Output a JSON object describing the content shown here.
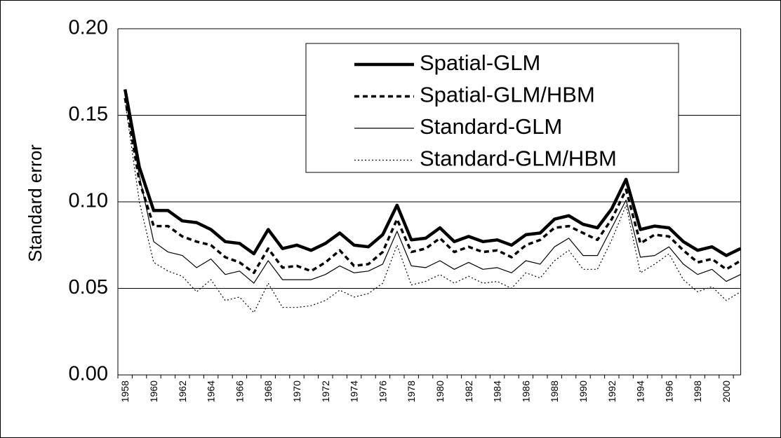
{
  "chart_data": {
    "type": "line",
    "y_label": "Standard error",
    "categories": [
      "1958",
      null,
      "1960",
      null,
      "1962",
      null,
      "1964",
      null,
      "1966",
      null,
      "1968",
      null,
      "1970",
      null,
      "1972",
      null,
      "1974",
      null,
      "1976",
      null,
      "1978",
      null,
      "1980",
      null,
      "1982",
      null,
      "1984",
      null,
      "1986",
      null,
      "1988",
      null,
      "1990",
      null,
      "1992",
      null,
      "1994",
      null,
      "1996",
      null,
      "1998",
      null,
      "2000",
      null
    ],
    "ylim": [
      0,
      0.2
    ],
    "yticks": [
      {
        "value": 0,
        "label": "0.00"
      },
      0.05,
      {
        "value": 0.1,
        "label": "0.10"
      },
      0.15,
      {
        "value": 0.2,
        "label": "0.20"
      }
    ],
    "grid": true,
    "legend": "top-right",
    "series": [
      {
        "name": "Spatial-GLM",
        "color": "#000000",
        "line_width": 4.5,
        "dash": "none",
        "values": [
          0.165,
          0.12,
          0.095,
          0.095,
          0.089,
          0.088,
          0.084,
          0.077,
          0.076,
          0.07,
          0.084,
          0.073,
          0.075,
          0.072,
          0.076,
          0.082,
          0.075,
          0.074,
          0.081,
          0.098,
          0.078,
          0.079,
          0.085,
          0.077,
          0.08,
          0.077,
          0.078,
          0.075,
          0.081,
          0.082,
          0.09,
          0.092,
          0.087,
          0.085,
          0.096,
          0.113,
          0.084,
          0.086,
          0.085,
          0.077,
          0.072,
          0.074,
          0.069,
          0.073
        ]
      },
      {
        "name": "Spatial-GLM/HBM",
        "color": "#000000",
        "line_width": 3.5,
        "dash": "7 5",
        "values": [
          0.16,
          0.112,
          0.086,
          0.086,
          0.08,
          0.077,
          0.075,
          0.068,
          0.065,
          0.059,
          0.073,
          0.062,
          0.063,
          0.06,
          0.065,
          0.072,
          0.063,
          0.064,
          0.071,
          0.09,
          0.071,
          0.073,
          0.079,
          0.071,
          0.074,
          0.071,
          0.072,
          0.068,
          0.075,
          0.078,
          0.085,
          0.086,
          0.082,
          0.078,
          0.09,
          0.107,
          0.076,
          0.081,
          0.08,
          0.072,
          0.065,
          0.067,
          0.061,
          0.066
        ]
      },
      {
        "name": "Standard-GLM",
        "color": "#000000",
        "line_width": 1.2,
        "dash": "none",
        "values": [
          0.162,
          0.115,
          0.077,
          0.071,
          0.069,
          0.062,
          0.067,
          0.058,
          0.06,
          0.053,
          0.066,
          0.055,
          0.055,
          0.055,
          0.058,
          0.063,
          0.059,
          0.06,
          0.064,
          0.083,
          0.063,
          0.062,
          0.066,
          0.061,
          0.065,
          0.061,
          0.062,
          0.059,
          0.066,
          0.064,
          0.074,
          0.079,
          0.069,
          0.069,
          0.085,
          0.101,
          0.068,
          0.069,
          0.074,
          0.064,
          0.058,
          0.061,
          0.054,
          0.058
        ]
      },
      {
        "name": "Standard-GLM/HBM",
        "color": "#000000",
        "line_width": 1.2,
        "dash": "2 3",
        "values": [
          0.158,
          0.1,
          0.065,
          0.06,
          0.057,
          0.048,
          0.055,
          0.043,
          0.045,
          0.036,
          0.053,
          0.039,
          0.039,
          0.04,
          0.043,
          0.049,
          0.045,
          0.047,
          0.053,
          0.075,
          0.052,
          0.054,
          0.058,
          0.053,
          0.057,
          0.053,
          0.054,
          0.05,
          0.059,
          0.056,
          0.066,
          0.072,
          0.061,
          0.061,
          0.078,
          0.098,
          0.059,
          0.064,
          0.07,
          0.055,
          0.048,
          0.051,
          0.043,
          0.048
        ]
      }
    ]
  }
}
